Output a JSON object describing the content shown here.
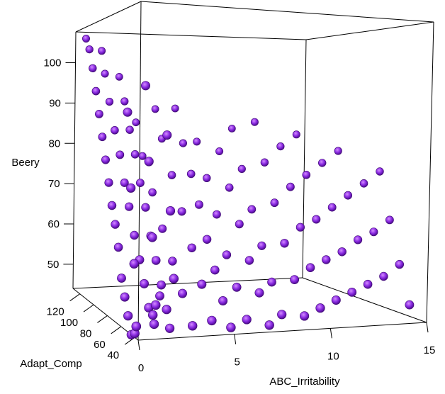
{
  "chart_data": {
    "type": "scatter3d",
    "title": "",
    "x_axis": {
      "label": "ABC_Irritability",
      "ticks": [
        0,
        5,
        10,
        15
      ],
      "range": [
        0,
        15
      ]
    },
    "y_axis": {
      "label": "Adapt_Comp",
      "ticks": [
        40,
        60,
        80,
        100,
        120
      ],
      "range": [
        35,
        130
      ]
    },
    "z_axis": {
      "label": "Beery",
      "ticks": [
        50,
        60,
        70,
        80,
        90,
        100
      ],
      "range": [
        44,
        108
      ]
    },
    "point_color": "#8a2be2",
    "points": [
      [
        0,
        40,
        45
      ],
      [
        0,
        45,
        44
      ],
      [
        0,
        50,
        48
      ],
      [
        0,
        55,
        52
      ],
      [
        0,
        60,
        56
      ],
      [
        0,
        65,
        63
      ],
      [
        0,
        70,
        68
      ],
      [
        0,
        75,
        72
      ],
      [
        0,
        80,
        77
      ],
      [
        0,
        85,
        82
      ],
      [
        0,
        90,
        87
      ],
      [
        0,
        95,
        92
      ],
      [
        0,
        100,
        97
      ],
      [
        0,
        105,
        102
      ],
      [
        0,
        110,
        106
      ],
      [
        0,
        115,
        108
      ],
      [
        1,
        40,
        47
      ],
      [
        1,
        48,
        50
      ],
      [
        1,
        55,
        55
      ],
      [
        1,
        62,
        60
      ],
      [
        1,
        70,
        65
      ],
      [
        1,
        78,
        71
      ],
      [
        1,
        85,
        76
      ],
      [
        1,
        92,
        82
      ],
      [
        1,
        100,
        87
      ],
      [
        1,
        108,
        93
      ],
      [
        1,
        115,
        99
      ],
      [
        1,
        120,
        104
      ],
      [
        2,
        45,
        45
      ],
      [
        2,
        50,
        49
      ],
      [
        2,
        58,
        54
      ],
      [
        2,
        66,
        59
      ],
      [
        2,
        74,
        64
      ],
      [
        2,
        82,
        70
      ],
      [
        2,
        90,
        75
      ],
      [
        2,
        98,
        81
      ],
      [
        2,
        106,
        86
      ],
      [
        2,
        114,
        92
      ],
      [
        2,
        122,
        97
      ],
      [
        0,
        38,
        47
      ],
      [
        1,
        42,
        49
      ],
      [
        2,
        60,
        51
      ],
      [
        3,
        40,
        46
      ],
      [
        3,
        55,
        52
      ],
      [
        3,
        70,
        58
      ],
      [
        3,
        85,
        64
      ],
      [
        3,
        100,
        71
      ],
      [
        3,
        115,
        78
      ],
      [
        3,
        125,
        85
      ],
      [
        1,
        38,
        52
      ],
      [
        2,
        40,
        58
      ],
      [
        0,
        42,
        62
      ],
      [
        1,
        44,
        68
      ],
      [
        2,
        46,
        74
      ],
      [
        0,
        48,
        80
      ],
      [
        1,
        50,
        86
      ],
      [
        2,
        52,
        92
      ],
      [
        0,
        54,
        98
      ],
      [
        1,
        56,
        104
      ],
      [
        4,
        40,
        47
      ],
      [
        4,
        55,
        54
      ],
      [
        4,
        70,
        61
      ],
      [
        4,
        85,
        68
      ],
      [
        4,
        100,
        75
      ],
      [
        4,
        115,
        82
      ],
      [
        4,
        125,
        88
      ],
      [
        5,
        40,
        45
      ],
      [
        5,
        52,
        50
      ],
      [
        5,
        64,
        56
      ],
      [
        5,
        76,
        62
      ],
      [
        5,
        88,
        69
      ],
      [
        5,
        100,
        75
      ],
      [
        5,
        112,
        81
      ],
      [
        5,
        124,
        88
      ],
      [
        6,
        45,
        46
      ],
      [
        6,
        60,
        52
      ],
      [
        6,
        75,
        58
      ],
      [
        6,
        90,
        66
      ],
      [
        6,
        105,
        73
      ],
      [
        6,
        120,
        80
      ],
      [
        7,
        40,
        45
      ],
      [
        7,
        55,
        51
      ],
      [
        7,
        70,
        57
      ],
      [
        7,
        85,
        64
      ],
      [
        7,
        100,
        71
      ],
      [
        7,
        115,
        78
      ],
      [
        8,
        50,
        46
      ],
      [
        8,
        65,
        52
      ],
      [
        8,
        80,
        59
      ],
      [
        8,
        95,
        66
      ],
      [
        8,
        110,
        74
      ],
      [
        8,
        125,
        82
      ],
      [
        9,
        45,
        46
      ],
      [
        9,
        60,
        53
      ],
      [
        9,
        75,
        60
      ],
      [
        9,
        90,
        68
      ],
      [
        9,
        105,
        76
      ],
      [
        9,
        120,
        84
      ],
      [
        10,
        50,
        47
      ],
      [
        10,
        65,
        55
      ],
      [
        10,
        80,
        63
      ],
      [
        10,
        95,
        71
      ],
      [
        10,
        110,
        79
      ],
      [
        11,
        55,
        48
      ],
      [
        11,
        70,
        56
      ],
      [
        11,
        85,
        64
      ],
      [
        11,
        100,
        73
      ],
      [
        11,
        115,
        81
      ],
      [
        12,
        60,
        49
      ],
      [
        12,
        75,
        57
      ],
      [
        12,
        90,
        66
      ],
      [
        12,
        105,
        75
      ],
      [
        13,
        65,
        50
      ],
      [
        13,
        80,
        59
      ],
      [
        13,
        95,
        68
      ],
      [
        13,
        110,
        77
      ],
      [
        14,
        70,
        51
      ],
      [
        14,
        85,
        60
      ],
      [
        14,
        100,
        70
      ],
      [
        15,
        60,
        45
      ],
      [
        15,
        75,
        53
      ],
      [
        15,
        90,
        62
      ],
      [
        15,
        105,
        72
      ]
    ]
  }
}
